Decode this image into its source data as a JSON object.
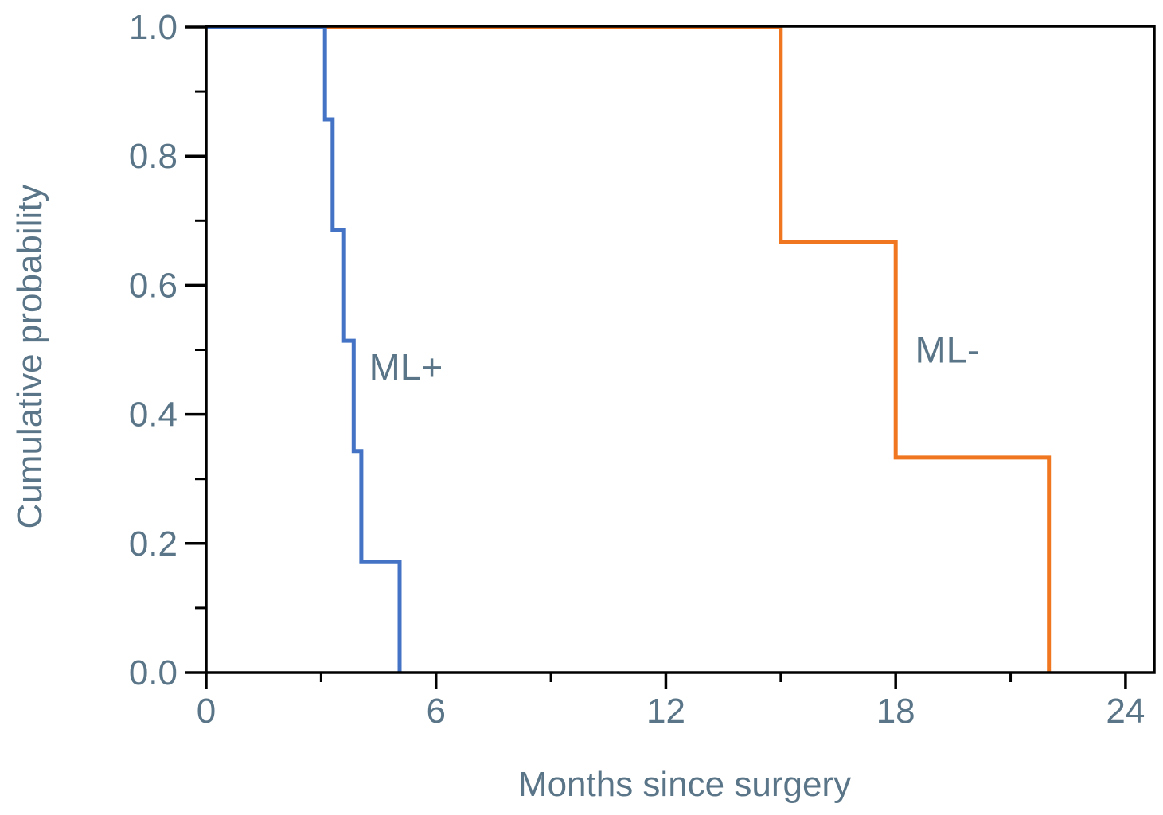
{
  "chart_data": {
    "type": "line",
    "subtype": "kaplan-meier-step",
    "title": "",
    "xlabel": "Months since surgery",
    "ylabel": "Cumulative probability",
    "xlim": [
      0,
      24.75
    ],
    "ylim": [
      0,
      1.0
    ],
    "grid": false,
    "legend_position": "inline-annotations",
    "x_major_ticks": [
      0,
      6,
      12,
      18,
      24
    ],
    "x_tick_labels": [
      "0",
      "6",
      "12",
      "18",
      "24"
    ],
    "x_minor_ticks": [
      3,
      9,
      15,
      21
    ],
    "y_major_ticks": [
      0.0,
      0.2,
      0.4,
      0.6,
      0.8,
      1.0
    ],
    "y_tick_labels": [
      "0.0",
      "0.2",
      "0.4",
      "0.6",
      "0.8",
      "1.0"
    ],
    "y_minor_ticks": [
      0.1,
      0.3,
      0.5,
      0.7,
      0.9
    ],
    "frame_color": "#000000",
    "text_color": "#5a7587",
    "series": [
      {
        "id": "ml-plus",
        "label": "ML+",
        "color": "#4473c5",
        "event_times_months": [
          3.1,
          3.3,
          3.6,
          3.85,
          4.05,
          5.05
        ],
        "survival_levels": [
          1.0,
          0.857,
          0.686,
          0.514,
          0.343,
          0.171,
          0
        ],
        "steps": [
          [
            0,
            1.0
          ],
          [
            3.1,
            1.0
          ],
          [
            3.1,
            0.857
          ],
          [
            3.3,
            0.857
          ],
          [
            3.3,
            0.686
          ],
          [
            3.6,
            0.686
          ],
          [
            3.6,
            0.514
          ],
          [
            3.85,
            0.514
          ],
          [
            3.85,
            0.343
          ],
          [
            4.05,
            0.343
          ],
          [
            4.05,
            0.171
          ],
          [
            5.05,
            0.171
          ],
          [
            5.05,
            0
          ]
        ]
      },
      {
        "id": "ml-minus",
        "label": "ML-",
        "color": "#f0771f",
        "event_times_months": [
          15,
          18,
          22
        ],
        "survival_levels": [
          1.0,
          0.667,
          0.333,
          0
        ],
        "steps": [
          [
            0,
            1.0
          ],
          [
            15,
            1.0
          ],
          [
            15,
            0.667
          ],
          [
            18,
            0.667
          ],
          [
            18,
            0.333
          ],
          [
            22,
            0.333
          ],
          [
            22,
            0
          ]
        ]
      }
    ]
  }
}
